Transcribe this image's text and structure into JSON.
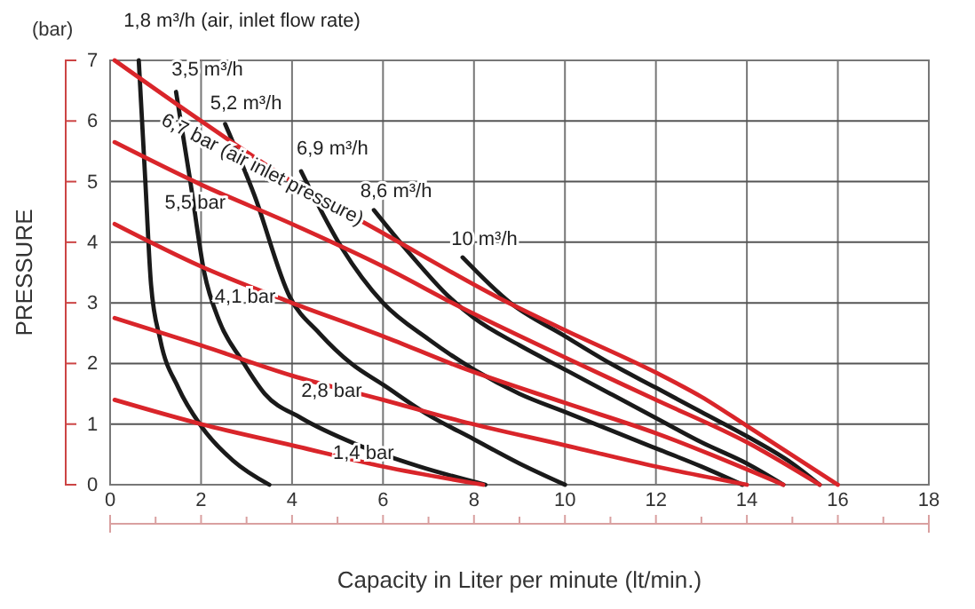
{
  "chart_data": {
    "type": "line",
    "xlabel": "Capacity in Liter per minute (lt/min.)",
    "ylabel": "PRESSURE",
    "annotations": [
      "(bar)"
    ],
    "xlim": [
      0,
      18
    ],
    "ylim": [
      0,
      7
    ],
    "xticks": [
      0,
      2,
      4,
      6,
      8,
      10,
      12,
      14,
      16,
      18
    ],
    "yticks": [
      0,
      1,
      2,
      3,
      4,
      5,
      6,
      7
    ],
    "grid": true,
    "legend": false,
    "line_style": "solid",
    "marker": "none",
    "series": [
      {
        "name": "1,8 m³/h  (air, inlet flow rate)",
        "color": "#1a1a1a",
        "x": [
          0.63,
          0.77,
          0.9,
          1.1,
          1.5,
          2,
          2.7,
          3.5
        ],
        "values": [
          7,
          5.07,
          3.3,
          2.4,
          1.6,
          0.97,
          0.4,
          0
        ]
      },
      {
        "name": "3,5 m³/h",
        "color": "#1a1a1a",
        "x": [
          1.45,
          1.75,
          2.07,
          2.4,
          2.9,
          3.4,
          4.2,
          5.4,
          6.8,
          8.25
        ],
        "values": [
          6.48,
          5.07,
          3.5,
          2.7,
          2.05,
          1.5,
          1.1,
          0.67,
          0.3,
          0
        ]
      },
      {
        "name": "5,2 m³/h",
        "color": "#1a1a1a",
        "x": [
          2.53,
          3.17,
          3.95,
          4.6,
          5.3,
          6,
          7,
          8,
          9,
          10
        ],
        "values": [
          5.95,
          4.78,
          3.1,
          2.5,
          2,
          1.65,
          1.15,
          0.75,
          0.35,
          0
        ]
      },
      {
        "name": "6,9 m³/h",
        "color": "#1a1a1a",
        "x": [
          4.2,
          5.1,
          6,
          7,
          8,
          9,
          10,
          11,
          12,
          13,
          13.9
        ],
        "values": [
          5.17,
          3.9,
          3,
          2.4,
          1.9,
          1.5,
          1.2,
          0.9,
          0.6,
          0.3,
          0
        ]
      },
      {
        "name": "8,6 m³/h",
        "color": "#1a1a1a",
        "x": [
          5.8,
          6.6,
          7.45,
          8,
          9,
          10,
          11,
          12,
          13,
          14,
          14.8
        ],
        "values": [
          4.53,
          3.8,
          3.1,
          2.75,
          2.3,
          1.9,
          1.5,
          1.1,
          0.7,
          0.35,
          0
        ]
      },
      {
        "name": "10 m³/h",
        "color": "#1a1a1a",
        "x": [
          7.75,
          8.8,
          10,
          11,
          12,
          13,
          14,
          15,
          15.6
        ],
        "values": [
          3.75,
          3,
          2.45,
          2,
          1.6,
          1.2,
          0.8,
          0.35,
          0
        ]
      },
      {
        "name": "6,7 bar (air inlet pressure)",
        "color": "#d9252a",
        "x": [
          0.1,
          2,
          4,
          6,
          8.5,
          10,
          12,
          13,
          14,
          16
        ],
        "values": [
          7,
          6,
          5,
          4.15,
          3.1,
          2.55,
          1.85,
          1.45,
          0.97,
          0
        ]
      },
      {
        "name": "5,5 bar",
        "color": "#d9252a",
        "x": [
          0.1,
          2,
          4,
          6,
          7.7,
          10,
          12,
          14,
          15.6
        ],
        "values": [
          5.65,
          4.95,
          4.3,
          3.6,
          2.93,
          2.1,
          1.4,
          0.7,
          0
        ]
      },
      {
        "name": "4,1 bar",
        "color": "#d9252a",
        "x": [
          0.1,
          2,
          4,
          6,
          7.7,
          10,
          12,
          14.8
        ],
        "values": [
          4.3,
          3.6,
          3,
          2.45,
          1.94,
          1.35,
          0.85,
          0
        ]
      },
      {
        "name": "2,8 bar",
        "color": "#d9252a",
        "x": [
          0.1,
          2,
          4,
          6,
          7.7,
          10,
          12,
          14
        ],
        "values": [
          2.75,
          2.3,
          1.8,
          1.4,
          1.05,
          0.65,
          0.3,
          0
        ]
      },
      {
        "name": "1,4 bar",
        "color": "#d9252a",
        "x": [
          0.1,
          2,
          4,
          6,
          8.2
        ],
        "values": [
          1.4,
          1,
          0.65,
          0.3,
          0
        ]
      }
    ]
  }
}
